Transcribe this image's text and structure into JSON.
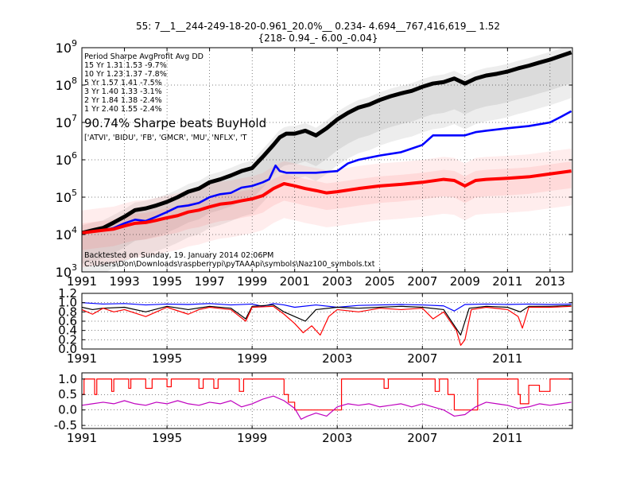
{
  "title_line1": "55:  7__1__244-249-18-20-0.961_20.0%__ 0.234- 4.694__767,416,619__ 1.52",
  "title_line2": "{218-  0.94_-  6.00_-0.04}",
  "colors": {
    "black": "#000000",
    "blue": "#0000ff",
    "red": "#ff0000",
    "magenta": "#bf00bf",
    "grey_band": "#9a9a9a",
    "red_band": "#ff6a6a"
  },
  "stats_table": {
    "header": "Period Sharpe AvgProfit  Avg DD",
    "rows": [
      "15 Yr  1.31   1.53  -9.7%",
      "10 Yr  1.23   1.37  -7.8%",
      "5 Yr   1.57   1.41  -7.5%",
      "3 Yr   1.40   1.33  -3.1%",
      "2 Yr   1.84   1.38  -2.4%",
      "1 Yr   2.40   1.55  -2.4%"
    ]
  },
  "beats_text": "90.74%  Sharpe beats BuyHold",
  "symbols_text": "['ATVI', 'BIDU', 'FB', 'GMCR', 'MU', 'NFLX', 'T",
  "backtest_text": "Backtested on Sunday, 19. January 2014 02:06PM",
  "path_text": "C:\\Users\\Don\\Downloads\\raspberrypi\\pyTAAApi\\symbols\\Naz100_symbols.txt",
  "chart_data": [
    {
      "type": "line",
      "panel": "value",
      "y_scale": "log",
      "xlim": [
        1991,
        2014.05
      ],
      "ylim": [
        1000,
        1000000000
      ],
      "x_ticks": [
        1991,
        1993,
        1995,
        1997,
        1999,
        2001,
        2003,
        2005,
        2007,
        2009,
        2011,
        2013
      ],
      "x_tick_labels": [
        "1991",
        "1993",
        "1995",
        "1997",
        "1999",
        "2001",
        "2003",
        "2005",
        "2007",
        "2009",
        "2011",
        "2013"
      ],
      "y_ticks": [
        1000,
        10000,
        100000,
        1000000,
        10000000,
        100000000,
        1000000000
      ],
      "y_tick_labels": [
        {
          "base": "10",
          "exp": "3"
        },
        {
          "base": "10",
          "exp": "4"
        },
        {
          "base": "10",
          "exp": "5"
        },
        {
          "base": "10",
          "exp": "6"
        },
        {
          "base": "10",
          "exp": "7"
        },
        {
          "base": "10",
          "exp": "8"
        },
        {
          "base": "10",
          "exp": "9"
        }
      ],
      "grid": true,
      "series": [
        {
          "color": "#000000",
          "x": [
            1991.0,
            1991.5,
            1992.0,
            1992.5,
            1993.0,
            1993.5,
            1994.0,
            1994.5,
            1995.0,
            1995.5,
            1996.0,
            1996.5,
            1997.0,
            1997.5,
            1998.0,
            1998.5,
            1999.0,
            1999.5,
            2000.0,
            2000.3,
            2000.6,
            2001.0,
            2001.5,
            2002.0,
            2002.5,
            2003.0,
            2003.5,
            2004.0,
            2004.5,
            2005.0,
            2005.5,
            2006.0,
            2006.5,
            2007.0,
            2007.5,
            2008.0,
            2008.5,
            2009.0,
            2009.5,
            2010.0,
            2010.5,
            2011.0,
            2011.5,
            2012.0,
            2012.5,
            2013.0,
            2013.5,
            2014.0
          ],
          "y": [
            11000,
            13000,
            15000,
            21000,
            30000,
            45000,
            50000,
            60000,
            75000,
            100000,
            140000,
            170000,
            250000,
            300000,
            380000,
            500000,
            600000,
            1200000,
            2500000,
            4000000,
            5000000,
            5000000,
            6000000,
            4500000,
            7000000,
            12000000,
            18000000,
            25000000,
            30000000,
            40000000,
            50000000,
            60000000,
            70000000,
            90000000,
            110000000,
            120000000,
            150000000,
            110000000,
            150000000,
            180000000,
            200000000,
            230000000,
            280000000,
            330000000,
            400000000,
            480000000,
            600000000,
            750000000
          ]
        },
        {
          "color": "#0000ff",
          "x": [
            1991.0,
            1991.5,
            1992.0,
            1992.5,
            1993.0,
            1993.5,
            1994.0,
            1994.5,
            1995.0,
            1995.5,
            1996.0,
            1996.5,
            1997.0,
            1997.5,
            1998.0,
            1998.5,
            1999.0,
            1999.5,
            1999.8,
            2000.1,
            2000.3,
            2000.6,
            2001.0,
            2002.0,
            2003.0,
            2003.5,
            2004.0,
            2005.0,
            2006.0,
            2006.5,
            2007.0,
            2007.5,
            2008.0,
            2009.0,
            2009.5,
            2010.0,
            2011.0,
            2012.0,
            2013.0,
            2013.5,
            2014.0
          ],
          "y": [
            11000,
            12000,
            13000,
            15000,
            20000,
            25000,
            23000,
            30000,
            40000,
            55000,
            60000,
            70000,
            100000,
            120000,
            130000,
            180000,
            200000,
            250000,
            300000,
            700000,
            500000,
            450000,
            450000,
            450000,
            500000,
            800000,
            1000000,
            1300000,
            1600000,
            2000000,
            2500000,
            4500000,
            4500000,
            4500000,
            5500000,
            6000000,
            7000000,
            8000000,
            10000000,
            14000000,
            20000000
          ]
        },
        {
          "color": "#ff0000",
          "x": [
            1991.0,
            1991.5,
            1992.0,
            1992.5,
            1993.0,
            1993.5,
            1994.0,
            1994.5,
            1995.0,
            1995.5,
            1996.0,
            1996.5,
            1997.0,
            1997.5,
            1998.0,
            1998.5,
            1999.0,
            1999.5,
            2000.0,
            2000.5,
            2001.0,
            2001.5,
            2002.0,
            2002.5,
            2003.0,
            2004.0,
            2005.0,
            2006.0,
            2007.0,
            2008.0,
            2008.5,
            2009.0,
            2009.5,
            2010.0,
            2011.0,
            2012.0,
            2013.0,
            2014.0
          ],
          "y": [
            11000,
            12000,
            13000,
            14000,
            17000,
            20000,
            21000,
            24000,
            28000,
            32000,
            40000,
            45000,
            55000,
            65000,
            70000,
            80000,
            90000,
            110000,
            170000,
            230000,
            200000,
            170000,
            150000,
            130000,
            140000,
            170000,
            200000,
            220000,
            250000,
            300000,
            280000,
            200000,
            280000,
            300000,
            320000,
            350000,
            420000,
            500000
          ]
        }
      ]
    },
    {
      "type": "line",
      "panel": "ratio",
      "xlim": [
        1991,
        2014.05
      ],
      "ylim": [
        0.0,
        1.2
      ],
      "x_ticks": [
        1991,
        1995,
        1999,
        2003,
        2007,
        2011
      ],
      "x_tick_labels": [
        "1991",
        "1995",
        "1999",
        "2003",
        "2007",
        "2011"
      ],
      "y_ticks": [
        0.0,
        0.2,
        0.4,
        0.6,
        0.8,
        1.0,
        1.2
      ],
      "y_tick_labels": [
        "0.0",
        "0.2",
        "0.4",
        "0.6",
        "0.8",
        "1.0",
        "1.2"
      ],
      "grid": true,
      "series": [
        {
          "color": "#0000ff",
          "x": [
            1991.0,
            1992.0,
            1993.0,
            1994.0,
            1995.0,
            1996.0,
            1997.0,
            1998.0,
            1999.0,
            1999.5,
            2000.0,
            2000.5,
            2001.0,
            2002.0,
            2003.0,
            2004.0,
            2005.0,
            2006.0,
            2007.0,
            2008.0,
            2008.5,
            2009.0,
            2010.0,
            2011.0,
            2012.0,
            2013.0,
            2014.0
          ],
          "y": [
            1.0,
            0.97,
            0.98,
            0.95,
            0.97,
            0.96,
            0.98,
            0.95,
            0.97,
            0.92,
            0.98,
            0.95,
            0.9,
            0.95,
            0.9,
            0.94,
            0.95,
            0.96,
            0.95,
            0.93,
            0.82,
            0.96,
            0.97,
            0.96,
            0.97,
            0.96,
            0.97
          ]
        },
        {
          "color": "#000000",
          "x": [
            1991.0,
            1991.5,
            1992.0,
            1993.0,
            1994.0,
            1995.0,
            1996.0,
            1997.0,
            1998.0,
            1998.7,
            1999.0,
            2000.0,
            2000.5,
            2001.0,
            2001.5,
            2002.0,
            2003.0,
            2004.0,
            2005.0,
            2006.0,
            2007.0,
            2008.0,
            2008.8,
            2009.2,
            2010.0,
            2011.0,
            2011.6,
            2012.0,
            2013.0,
            2014.0
          ],
          "y": [
            0.9,
            0.85,
            0.88,
            0.9,
            0.8,
            0.92,
            0.85,
            0.92,
            0.88,
            0.65,
            0.92,
            0.95,
            0.8,
            0.7,
            0.6,
            0.85,
            0.9,
            0.88,
            0.9,
            0.92,
            0.9,
            0.85,
            0.3,
            0.88,
            0.92,
            0.9,
            0.8,
            0.92,
            0.92,
            0.94
          ]
        },
        {
          "color": "#ff0000",
          "x": [
            1991.0,
            1991.5,
            1992.0,
            1992.5,
            1993.0,
            1994.0,
            1994.5,
            1995.0,
            1996.0,
            1996.5,
            1997.0,
            1998.0,
            1998.7,
            1999.0,
            2000.0,
            2000.5,
            2001.0,
            2001.4,
            2001.8,
            2002.2,
            2002.6,
            2003.0,
            2004.0,
            2005.0,
            2006.0,
            2007.0,
            2007.5,
            2008.0,
            2008.6,
            2008.8,
            2009.0,
            2009.3,
            2010.0,
            2011.0,
            2011.5,
            2011.7,
            2012.0,
            2013.0,
            2014.0
          ],
          "y": [
            0.85,
            0.75,
            0.88,
            0.8,
            0.85,
            0.7,
            0.8,
            0.9,
            0.75,
            0.85,
            0.9,
            0.85,
            0.6,
            0.9,
            0.92,
            0.75,
            0.55,
            0.35,
            0.5,
            0.3,
            0.7,
            0.85,
            0.8,
            0.88,
            0.85,
            0.88,
            0.65,
            0.8,
            0.4,
            0.08,
            0.2,
            0.85,
            0.9,
            0.85,
            0.7,
            0.45,
            0.9,
            0.9,
            0.92
          ]
        }
      ]
    },
    {
      "type": "line",
      "panel": "signal",
      "xlim": [
        1991,
        2014.05
      ],
      "ylim": [
        -0.6,
        1.2
      ],
      "x_ticks": [
        1991,
        1995,
        1999,
        2003,
        2007,
        2011
      ],
      "x_tick_labels": [
        "1991",
        "1995",
        "1999",
        "2003",
        "2007",
        "2011"
      ],
      "y_ticks": [
        -0.5,
        0.0,
        0.5,
        1.0
      ],
      "y_tick_labels": [
        "-0.5",
        "0.0",
        "0.5",
        "1.0"
      ],
      "grid": true,
      "series": [
        {
          "color": "#ff0000",
          "step": true,
          "x": [
            1991.0,
            1991.1,
            1991.6,
            1991.7,
            1992.4,
            1992.5,
            1993.2,
            1993.3,
            1994.0,
            1994.3,
            1995.0,
            1995.2,
            1996.5,
            1996.7,
            1997.2,
            1997.4,
            1998.4,
            1998.6,
            1999.0,
            2000.5,
            2000.7,
            2001.0,
            2003.0,
            2003.2,
            2005.2,
            2005.4,
            2007.6,
            2007.8,
            2008.2,
            2008.5,
            2009.4,
            2009.6,
            2011.5,
            2011.6,
            2012.0,
            2012.5,
            2013.0,
            2014.0
          ],
          "y": [
            0.5,
            1.0,
            0.5,
            1.0,
            0.6,
            1.0,
            0.7,
            1.0,
            0.7,
            1.0,
            0.75,
            1.0,
            0.7,
            1.0,
            0.7,
            1.0,
            0.6,
            1.0,
            1.0,
            0.5,
            0.25,
            0.0,
            0.0,
            1.0,
            0.7,
            1.0,
            0.6,
            1.0,
            0.5,
            0.0,
            0.0,
            1.0,
            0.5,
            0.2,
            0.8,
            0.6,
            1.0,
            1.0
          ]
        },
        {
          "color": "#bf00bf",
          "x": [
            1991.0,
            1991.5,
            1992.0,
            1992.5,
            1993.0,
            1993.5,
            1994.0,
            1994.5,
            1995.0,
            1995.5,
            1996.0,
            1996.5,
            1997.0,
            1997.5,
            1998.0,
            1998.5,
            1999.0,
            1999.5,
            2000.0,
            2000.5,
            2001.0,
            2001.3,
            2001.6,
            2002.0,
            2002.5,
            2003.0,
            2003.5,
            2004.0,
            2004.5,
            2005.0,
            2005.5,
            2006.0,
            2006.5,
            2007.0,
            2007.5,
            2008.0,
            2008.5,
            2009.0,
            2009.5,
            2010.0,
            2010.5,
            2011.0,
            2011.5,
            2012.0,
            2012.5,
            2013.0,
            2013.5,
            2014.0
          ],
          "y": [
            0.15,
            0.2,
            0.25,
            0.2,
            0.3,
            0.2,
            0.15,
            0.25,
            0.2,
            0.3,
            0.2,
            0.15,
            0.25,
            0.2,
            0.3,
            0.1,
            0.2,
            0.35,
            0.45,
            0.3,
            0.05,
            -0.3,
            -0.2,
            -0.1,
            -0.2,
            0.1,
            0.2,
            0.15,
            0.2,
            0.1,
            0.15,
            0.2,
            0.1,
            0.2,
            0.1,
            0.0,
            -0.2,
            -0.15,
            0.1,
            0.25,
            0.2,
            0.15,
            0.05,
            0.1,
            0.2,
            0.15,
            0.2,
            0.25
          ]
        }
      ]
    }
  ]
}
